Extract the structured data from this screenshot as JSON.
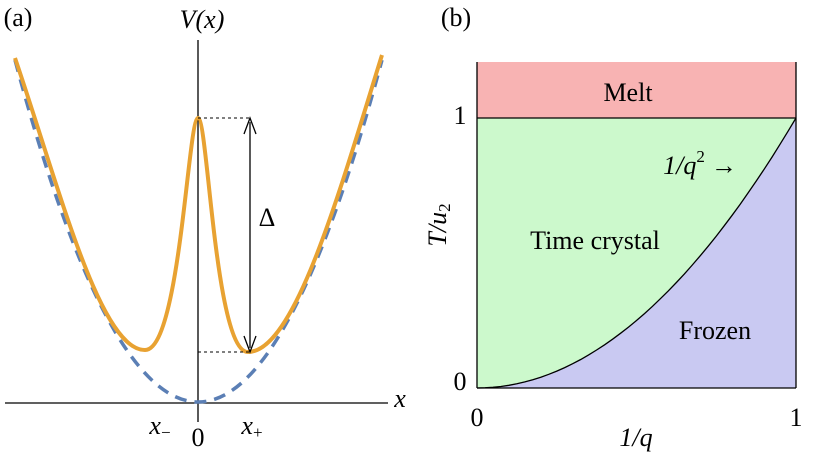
{
  "panel_a": {
    "label": "(a)",
    "y_axis_label": "V(x)",
    "x_axis_label": "x",
    "delta_label": "Δ",
    "x_ticks": [
      {
        "symbol": "x",
        "sub": "−"
      },
      {
        "text": "0"
      },
      {
        "symbol": "x",
        "sub": "+"
      }
    ]
  },
  "panel_b": {
    "label": "(b)",
    "y_axis_label": {
      "base": "T/u",
      "sub": "2"
    },
    "x_axis_label": "1/q",
    "y_ticks": [
      0,
      1
    ],
    "x_ticks": [
      0,
      1
    ],
    "regions": {
      "melt": "Melt",
      "time_crystal": "Time crystal",
      "frozen": "Frozen"
    },
    "curve_label": {
      "base": "1/q",
      "sup": "2",
      "arrow": "→"
    }
  }
}
